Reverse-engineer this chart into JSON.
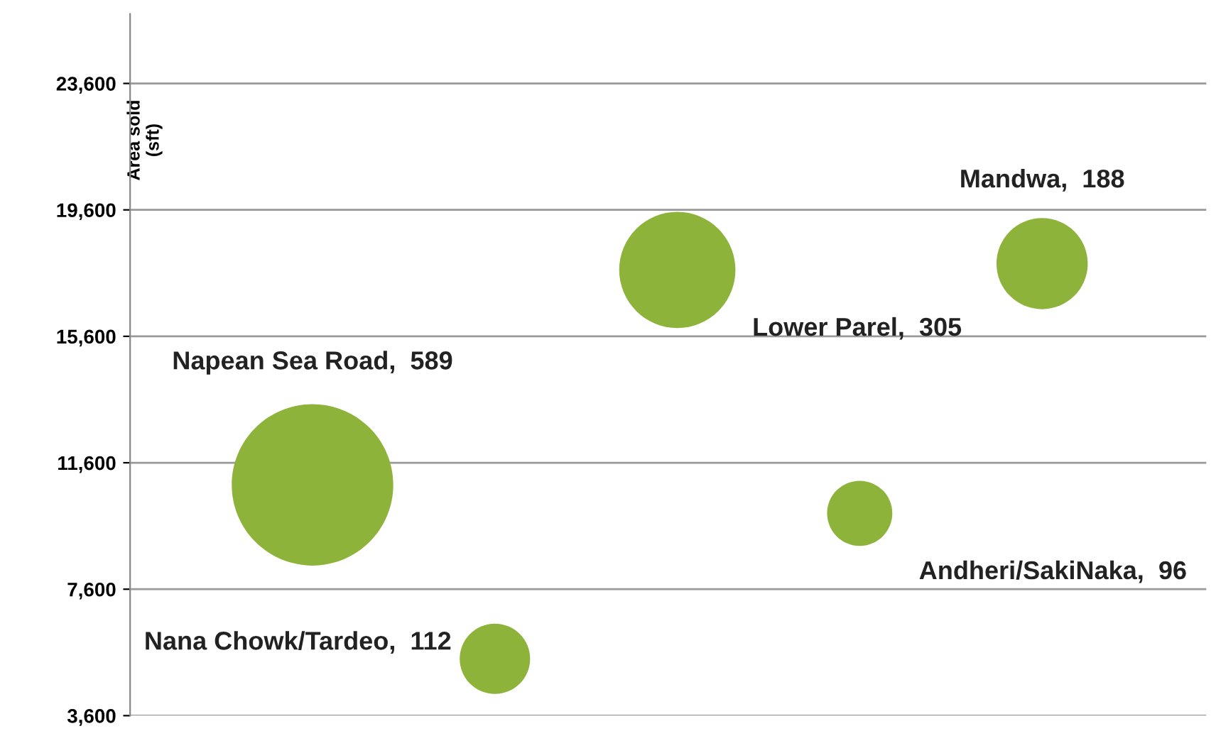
{
  "chart_data": {
    "type": "bubble",
    "ylabel": "Area sold\n(sft)",
    "categories": [
      null,
      null,
      null,
      null,
      null
    ],
    "values": [
      10900,
      5400,
      17700,
      10000,
      17900
    ],
    "sizes": [
      1,
      0.19,
      0.518,
      0.163,
      0.319
    ],
    "annotations": [
      "Napean Sea Road,  589",
      "Nana Chowk/Tardeo,  112",
      "Lower Parel,  305",
      "Andheri/SakiNaka,  96",
      "Mandwa,  188"
    ],
    "color": "#8db33a",
    "ylim": [
      3600,
      25800
    ],
    "yticks": [
      {
        "value": 3600,
        "label": "3,600"
      },
      {
        "value": 7600,
        "label": "7,600"
      },
      {
        "value": 11600,
        "label": "11,600"
      },
      {
        "value": 15600,
        "label": "15,600"
      },
      {
        "value": 19600,
        "label": "19,600"
      },
      {
        "value": 23600,
        "label": "23,600"
      }
    ],
    "grid": "y",
    "legend": false
  }
}
